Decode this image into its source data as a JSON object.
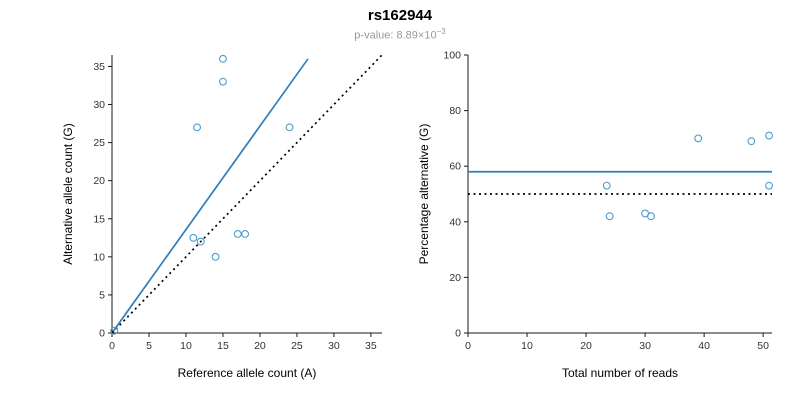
{
  "header": {
    "title": "rs162944",
    "pvalue_label": "p-value: ",
    "pvalue_base": "8.89×10",
    "pvalue_exponent": "−3"
  },
  "colors": {
    "line_blue": "#2e7ebc",
    "point_blue": "#4f9bcb",
    "dotted_black": "#000000",
    "axis_black": "#1a1a1a",
    "tick_label": "#333333",
    "subtitle_gray": "#999999"
  },
  "chart_data": [
    {
      "type": "scatter",
      "name": "allele-counts",
      "xlabel": "Reference allele count (A)",
      "ylabel": "Alternative allele count (G)",
      "xlim": [
        0,
        36.5
      ],
      "ylim": [
        0,
        36.5
      ],
      "xticks": [
        0,
        5,
        10,
        15,
        20,
        25,
        30,
        35
      ],
      "yticks": [
        0,
        5,
        10,
        15,
        20,
        25,
        30,
        35
      ],
      "grid": false,
      "point_color": "#4f9bcb",
      "points": [
        [
          0.3,
          0.3
        ],
        [
          11,
          12.5
        ],
        [
          12,
          12
        ],
        [
          14,
          10
        ],
        [
          17,
          13
        ],
        [
          18,
          13
        ],
        [
          11.5,
          27
        ],
        [
          24,
          27
        ],
        [
          15,
          33
        ],
        [
          15,
          36
        ]
      ],
      "lines": [
        {
          "name": "regression-line",
          "style": "solid",
          "color": "#2e7ebc",
          "x1": 0,
          "y1": 0,
          "x2": 26.5,
          "y2": 36
        },
        {
          "name": "identity-line",
          "style": "dotted",
          "color": "#000000",
          "x1": 0,
          "y1": 0,
          "x2": 36.5,
          "y2": 36.5
        }
      ]
    },
    {
      "type": "scatter",
      "name": "percentage-vs-reads",
      "xlabel": "Total number of reads",
      "ylabel": "Percentage alternative (G)",
      "xlim": [
        0,
        51.5
      ],
      "ylim": [
        0,
        100
      ],
      "xticks": [
        0,
        10,
        20,
        30,
        40,
        50
      ],
      "yticks": [
        0,
        20,
        40,
        60,
        80,
        100
      ],
      "grid": false,
      "point_color": "#4f9bcb",
      "points": [
        [
          23.5,
          53
        ],
        [
          24,
          42
        ],
        [
          30,
          43
        ],
        [
          31,
          42
        ],
        [
          39,
          70
        ],
        [
          48,
          69
        ],
        [
          51,
          71
        ],
        [
          51,
          53
        ]
      ],
      "lines": [
        {
          "name": "mean-percentage-line",
          "style": "solid",
          "color": "#2e7ebc",
          "x1": 0,
          "y1": 58,
          "x2": 51.5,
          "y2": 58
        },
        {
          "name": "expected-50pct-line",
          "style": "dotted",
          "color": "#000000",
          "x1": 0,
          "y1": 50,
          "x2": 51.5,
          "y2": 50
        }
      ]
    }
  ]
}
